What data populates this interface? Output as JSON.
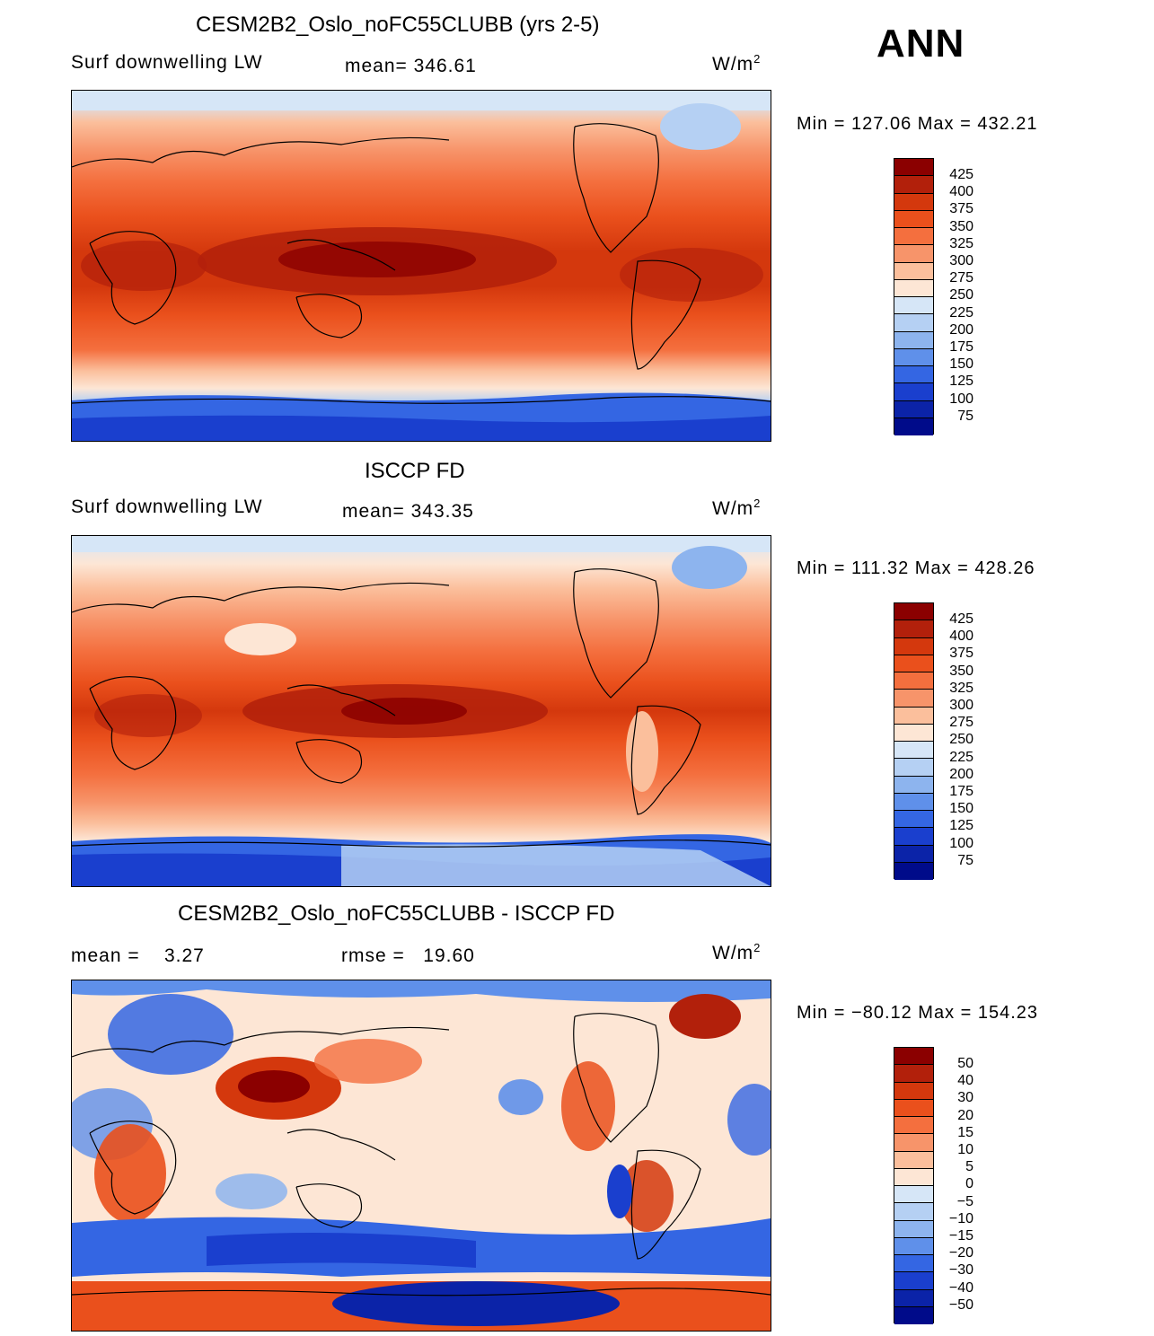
{
  "season": "ANN",
  "units_text": "W/m",
  "units_exp": "2",
  "panels": [
    {
      "title": "CESM2B2_Oslo_noFC55CLUBB (yrs 2-5)",
      "left_label": "Surf downwelling LW",
      "mid_label": "mean= 346.61",
      "minmax": "Min = 127.06 Max = 432.21",
      "colorbar_labels": [
        "425",
        "400",
        "375",
        "350",
        "325",
        "300",
        "275",
        "250",
        "225",
        "200",
        "175",
        "150",
        "125",
        "100",
        "75"
      ]
    },
    {
      "title": "ISCCP FD",
      "left_label": "Surf downwelling LW",
      "mid_label": "mean= 343.35",
      "minmax": "Min = 111.32 Max = 428.26",
      "colorbar_labels": [
        "425",
        "400",
        "375",
        "350",
        "325",
        "300",
        "275",
        "250",
        "225",
        "200",
        "175",
        "150",
        "125",
        "100",
        "75"
      ]
    },
    {
      "title": "CESM2B2_Oslo_noFC55CLUBB - ISCCP FD",
      "left_label": "mean =    3.27",
      "mid_label": "rmse =   19.60",
      "minmax": "Min = −80.12 Max = 154.23",
      "colorbar_labels": [
        "50",
        "40",
        "30",
        "20",
        "15",
        "10",
        "5",
        "0",
        "−5",
        "−10",
        "−15",
        "−20",
        "−30",
        "−40",
        "−50"
      ]
    }
  ],
  "colors": {
    "colorbar_top_to_bottom": [
      "#8b0000",
      "#b2200b",
      "#d4380d",
      "#ea501c",
      "#f46f3e",
      "#f7946a",
      "#fbbf9c",
      "#fde6d5",
      "#d6e6f7",
      "#b5d0f3",
      "#8db4ee",
      "#5f90ea",
      "#3466e3",
      "#1a3fce",
      "#0b23a8",
      "#000b8a"
    ],
    "land_line": "#000000"
  }
}
